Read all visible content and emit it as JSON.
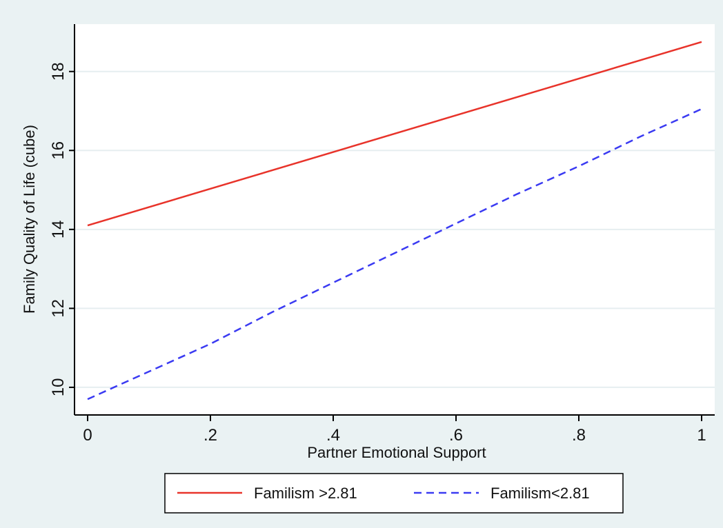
{
  "chart_data": {
    "type": "line",
    "xlabel": "Partner Emotional Support",
    "ylabel": "Family Quality of Life (cube)",
    "xlim": [
      0,
      1
    ],
    "ylim": [
      9.3,
      19.2
    ],
    "x_ticks": [
      0,
      0.2,
      0.4,
      0.6,
      0.8,
      1
    ],
    "x_tick_labels": [
      "0",
      ".2",
      ".4",
      ".6",
      ".8",
      "1"
    ],
    "y_ticks": [
      10,
      12,
      14,
      16,
      18
    ],
    "y_tick_labels": [
      "10",
      "12",
      "14",
      "16",
      "18"
    ],
    "grid": "horizontal",
    "legend_position": "bottom",
    "series": [
      {
        "name": "Familism >2.81",
        "color": "#e8332a",
        "dash": "solid",
        "x": [
          0,
          1
        ],
        "values": [
          14.1,
          18.75
        ]
      },
      {
        "name": "Familism<2.81",
        "color": "#3a3af2",
        "dash": "dashed",
        "x": [
          0,
          0.1,
          0.2,
          0.3,
          0.4,
          0.5,
          0.6,
          0.7,
          0.8,
          0.9,
          1
        ],
        "values": [
          9.7,
          10.4,
          11.1,
          11.9,
          12.65,
          13.4,
          14.15,
          14.9,
          15.6,
          16.35,
          17.05
        ]
      }
    ]
  }
}
